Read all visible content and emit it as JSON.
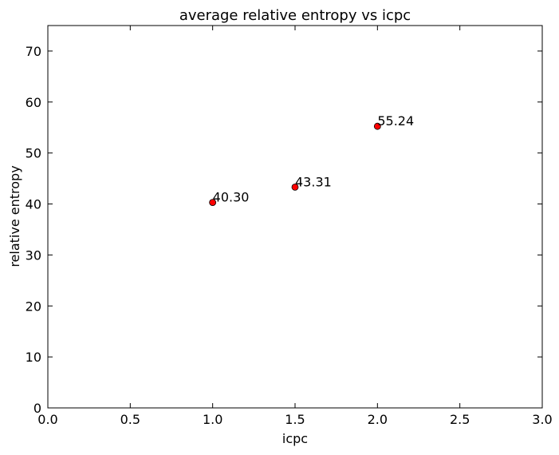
{
  "chart_data": {
    "type": "scatter",
    "title": "average relative entropy vs icpc",
    "xlabel": "icpc",
    "ylabel": "relative entropy",
    "xlim": [
      0.0,
      3.0
    ],
    "ylim": [
      0,
      75
    ],
    "x_ticks": [
      0.0,
      0.5,
      1.0,
      1.5,
      2.0,
      2.5,
      3.0
    ],
    "x_tick_labels": [
      "0.0",
      "0.5",
      "1.0",
      "1.5",
      "2.0",
      "2.5",
      "3.0"
    ],
    "y_ticks": [
      0,
      10,
      20,
      30,
      40,
      50,
      60,
      70
    ],
    "y_tick_labels": [
      "0",
      "10",
      "20",
      "30",
      "40",
      "50",
      "60",
      "70"
    ],
    "grid": false,
    "marker_color": "#ff0000",
    "marker_edge_color": "#000000",
    "points": [
      {
        "x": 1.0,
        "y": 40.3,
        "label": "40.30"
      },
      {
        "x": 1.5,
        "y": 43.31,
        "label": "43.31"
      },
      {
        "x": 2.0,
        "y": 55.24,
        "label": "55.24"
      }
    ]
  }
}
